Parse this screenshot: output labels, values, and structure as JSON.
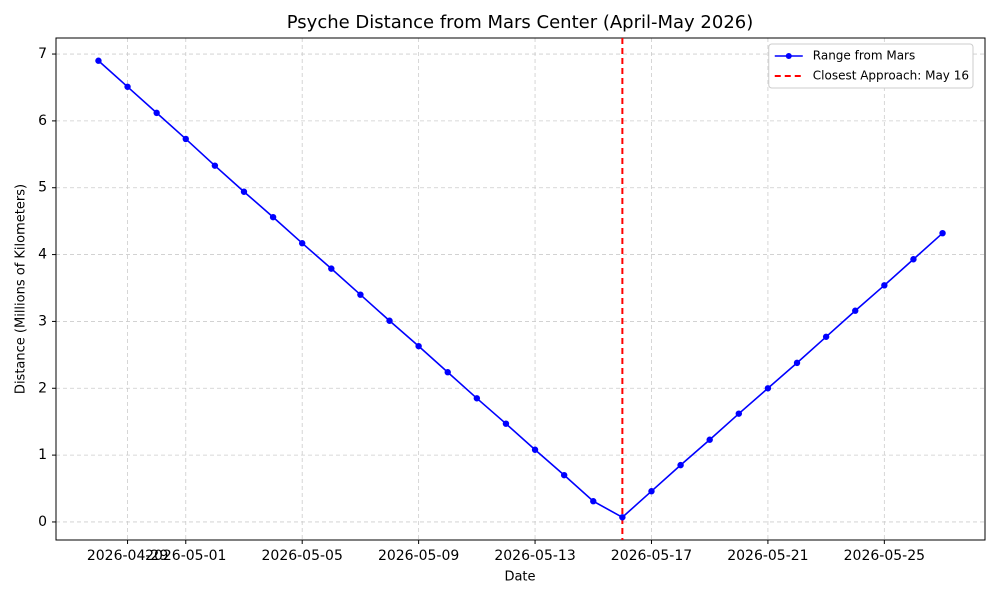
{
  "chart_data": {
    "type": "line",
    "title": "Psyche Distance from Mars Center (April-May 2026)",
    "xlabel": "Date",
    "ylabel": "Distance (Millions of Kilometers)",
    "x": [
      "2026-04-28",
      "2026-04-29",
      "2026-04-30",
      "2026-05-01",
      "2026-05-02",
      "2026-05-03",
      "2026-05-04",
      "2026-05-05",
      "2026-05-06",
      "2026-05-07",
      "2026-05-08",
      "2026-05-09",
      "2026-05-10",
      "2026-05-11",
      "2026-05-12",
      "2026-05-13",
      "2026-05-14",
      "2026-05-15",
      "2026-05-16",
      "2026-05-17",
      "2026-05-18",
      "2026-05-19",
      "2026-05-20",
      "2026-05-21",
      "2026-05-22",
      "2026-05-23",
      "2026-05-24",
      "2026-05-25",
      "2026-05-26",
      "2026-05-27"
    ],
    "series": [
      {
        "name": "Range from Mars",
        "color": "#0000ff",
        "values": [
          6.9,
          6.51,
          6.12,
          5.73,
          5.33,
          4.94,
          4.56,
          4.17,
          3.79,
          3.4,
          3.01,
          2.63,
          2.24,
          1.85,
          1.47,
          1.08,
          0.7,
          0.31,
          0.07,
          0.46,
          0.85,
          1.23,
          1.62,
          2.0,
          2.38,
          2.77,
          3.16,
          3.54,
          3.93,
          4.32
        ]
      }
    ],
    "vlines": [
      {
        "x": "2026-05-16",
        "name": "Closest Approach: May 16",
        "color": "#ff0000"
      }
    ],
    "xlim": [
      "2026-04-26T13:00",
      "2026-05-28T11:00"
    ],
    "xticks": [
      "2026-04-29",
      "2026-05-01",
      "2026-05-05",
      "2026-05-09",
      "2026-05-13",
      "2026-05-17",
      "2026-05-21",
      "2026-05-25"
    ],
    "ylim": [
      -0.27,
      7.24
    ],
    "yticks": [
      0,
      1,
      2,
      3,
      4,
      5,
      6,
      7
    ],
    "grid": true,
    "legend": "upper right"
  }
}
